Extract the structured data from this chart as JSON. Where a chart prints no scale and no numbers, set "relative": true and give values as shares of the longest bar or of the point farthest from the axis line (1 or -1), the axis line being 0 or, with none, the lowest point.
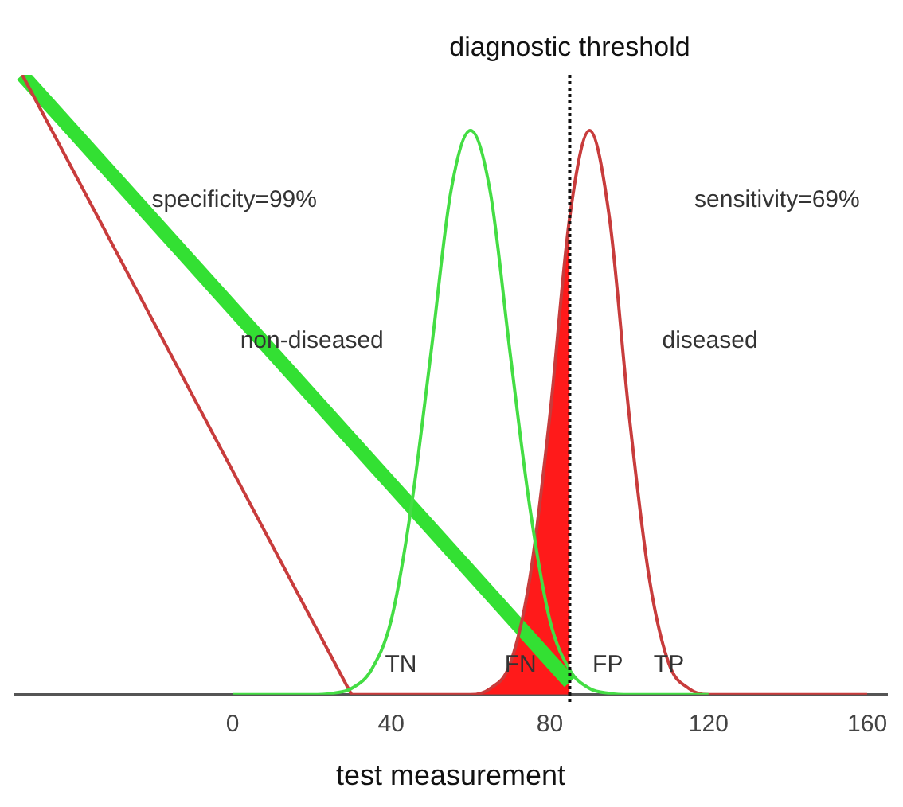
{
  "chart_data": {
    "type": "line",
    "relative": true,
    "xlabel": "test measurement",
    "xlim": [
      -55,
      165
    ],
    "xticks": [
      0,
      40,
      80,
      120,
      160
    ],
    "grid": false,
    "legend": false,
    "marker": "none",
    "line_style": "solid",
    "series": [
      {
        "type": "area",
        "color": "#ff1a1a",
        "x": [
          60,
          65,
          70,
          75,
          80,
          85
        ],
        "values": [
          0,
          0.01,
          0.05,
          0.19,
          0.45,
          0.77
        ]
      },
      {
        "color": "#44dd44",
        "x": [
          0,
          5,
          10,
          15,
          20,
          25,
          30,
          35,
          40,
          45,
          50,
          55,
          60,
          65,
          70,
          75,
          80,
          85,
          90,
          95,
          100,
          105,
          110,
          115,
          120
        ],
        "values": [
          0,
          0,
          0,
          0,
          0,
          0.002,
          0.01,
          0.04,
          0.12,
          0.3,
          0.55,
          0.81,
          0.91,
          0.81,
          0.55,
          0.3,
          0.12,
          0.04,
          0.01,
          0.002,
          0,
          0,
          0,
          0,
          0
        ]
      },
      {
        "color": "#c83c3c",
        "x": [
          30,
          35,
          40,
          45,
          50,
          55,
          60,
          65,
          70,
          75,
          80,
          85,
          90,
          95,
          100,
          105,
          110,
          115,
          120,
          125,
          130,
          135,
          140,
          145,
          150,
          155,
          160
        ],
        "values": [
          0,
          0,
          0,
          0,
          0,
          0,
          0,
          0.01,
          0.05,
          0.19,
          0.45,
          0.77,
          0.91,
          0.77,
          0.45,
          0.19,
          0.05,
          0.01,
          0,
          0,
          0,
          0,
          0,
          0,
          0,
          0,
          0
        ]
      },
      {
        "color": "#c83c3c",
        "x": [
          -53,
          30
        ],
        "values": [
          1,
          0
        ]
      },
      {
        "color": "#33e033",
        "x": [
          -53,
          85
        ],
        "values": [
          1,
          0.02
        ]
      }
    ],
    "ref_lines": [
      {
        "axis": "x",
        "value": 85,
        "label": "diagnostic threshold",
        "color": "#111111",
        "line_style": "dotted"
      }
    ],
    "annotations": [
      "specificity=99%",
      "sensitivity=69%",
      "non-diseased",
      "diseased",
      "TN",
      "FN",
      "FP",
      "TP"
    ]
  }
}
